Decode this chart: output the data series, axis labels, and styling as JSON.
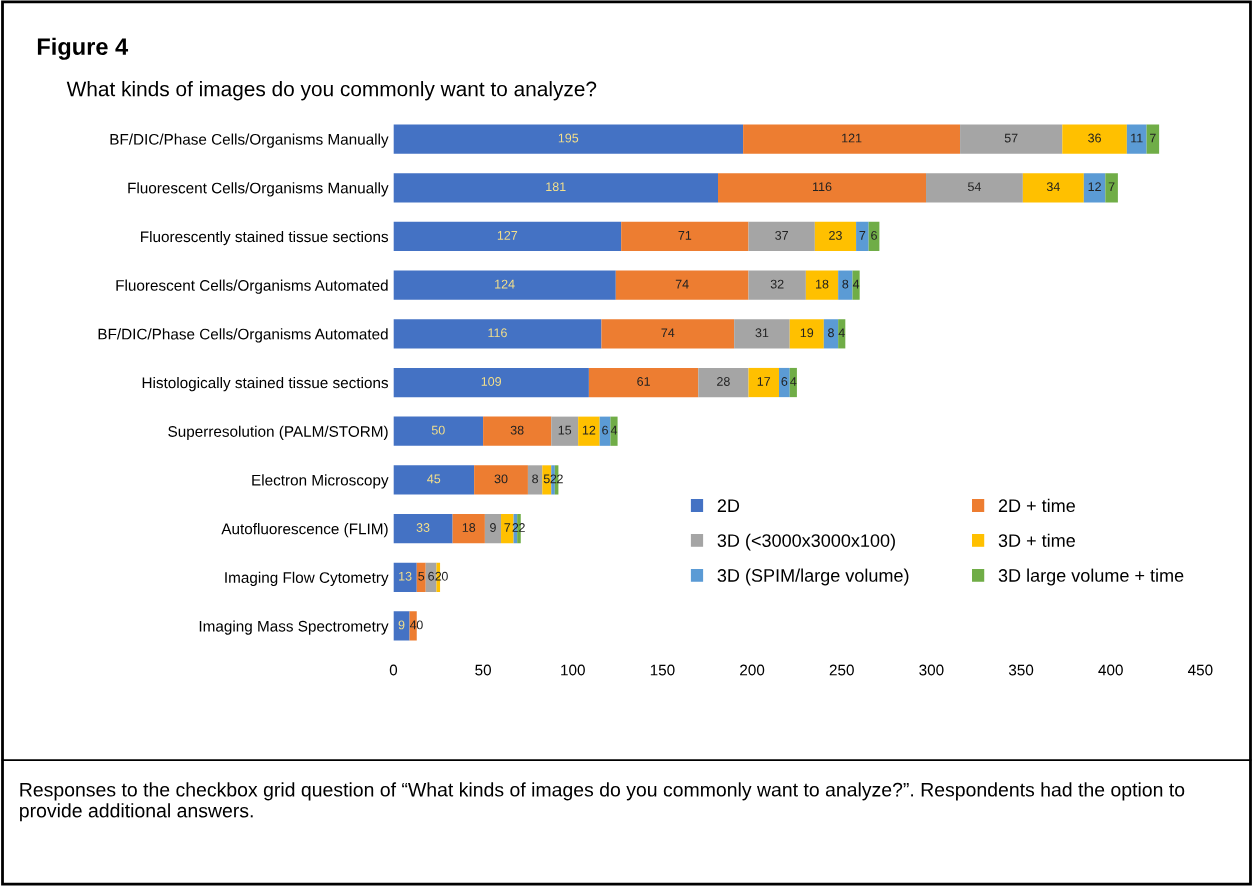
{
  "chart_data": {
    "type": "bar",
    "orientation": "horizontal",
    "stacked": true,
    "title": "What kinds of images do you commonly want to analyze?",
    "annotations": [
      "Figure 4",
      "Responses to the checkbox grid question of “What kinds of images do you commonly want to analyze?”. Respondents had the option to provide additional answers."
    ],
    "categories": [
      "BF/DIC/Phase Cells/Organisms Manually",
      "Fluorescent Cells/Organisms Manually",
      "Fluorescently stained tissue sections",
      "Fluorescent Cells/Organisms Automated",
      "BF/DIC/Phase Cells/Organisms Automated",
      "Histologically stained tissue sections",
      "Superresolution (PALM/STORM)",
      "Electron Microscopy",
      "Autofluorescence (FLIM)",
      "Imaging Flow Cytometry",
      "Imaging Mass Spectrometry"
    ],
    "series": [
      {
        "name": "2D",
        "color": "#4472c4",
        "values": [
          195,
          181,
          127,
          124,
          116,
          109,
          50,
          45,
          33,
          13,
          9
        ],
        "value_labels": [
          "195",
          "181",
          "127",
          "124",
          "116",
          "109",
          "50",
          "45",
          "33",
          "13",
          "9"
        ]
      },
      {
        "name": "2D + time",
        "color": "#ed7d31",
        "values": [
          121,
          116,
          71,
          74,
          74,
          61,
          38,
          30,
          18,
          5,
          4
        ],
        "value_labels": [
          "121",
          "116",
          "71",
          "74",
          "74",
          "61",
          "38",
          "30",
          "18",
          "5",
          "4"
        ]
      },
      {
        "name": "3D (<3000x3000x100)",
        "color": "#a5a5a5",
        "values": [
          57,
          54,
          37,
          32,
          31,
          28,
          15,
          8,
          9,
          6,
          0
        ],
        "value_labels": [
          "57",
          "54",
          "37",
          "32",
          "31",
          "28",
          "15",
          "8",
          "9",
          "6",
          "0"
        ]
      },
      {
        "name": "3D + time",
        "color": "#ffc000",
        "values": [
          36,
          34,
          23,
          18,
          19,
          17,
          12,
          5,
          7,
          2,
          0
        ],
        "value_labels": [
          "36",
          "34",
          "23",
          "18",
          "19",
          "17",
          "12",
          "5",
          "7",
          "2",
          null
        ]
      },
      {
        "name": "3D (SPIM/large volume)",
        "color": "#5b9bd5",
        "values": [
          11,
          12,
          7,
          8,
          8,
          6,
          6,
          2,
          2,
          0,
          0
        ],
        "value_labels": [
          "11",
          "12",
          "7",
          "8",
          "8",
          "6",
          "6",
          "2",
          "2",
          "0",
          null
        ]
      },
      {
        "name": "3D large volume + time",
        "color": "#70ad47",
        "values": [
          7,
          7,
          6,
          4,
          4,
          4,
          4,
          2,
          2,
          0,
          0
        ],
        "value_labels": [
          "7",
          "7",
          "6",
          "4",
          "4",
          "4",
          "4",
          "2",
          "2",
          null,
          null
        ]
      }
    ],
    "xlim": [
      0,
      450
    ],
    "xticks": [
      0,
      50,
      100,
      150,
      200,
      250,
      300,
      350,
      400,
      450
    ],
    "grid": false,
    "legend": "bottom right"
  }
}
